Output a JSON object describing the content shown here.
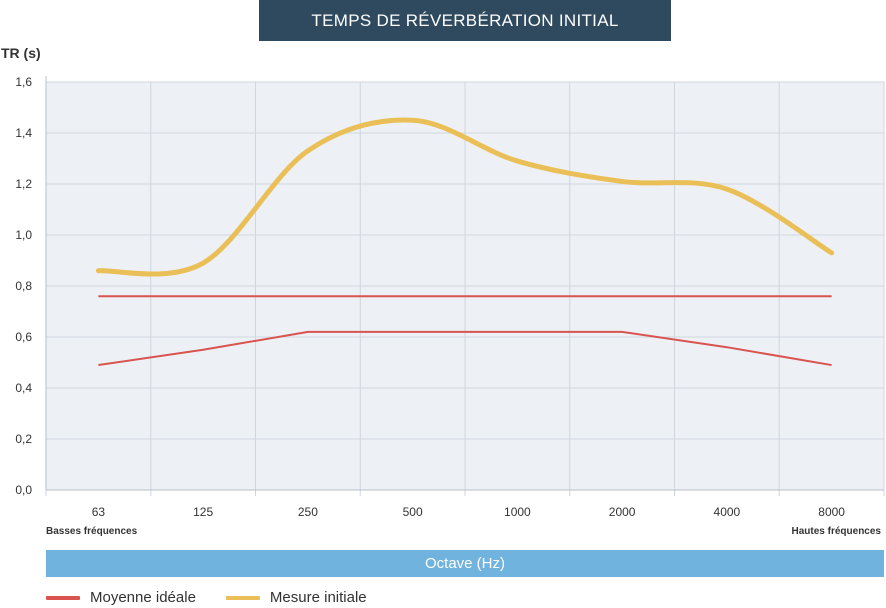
{
  "chart_data": {
    "type": "line",
    "title": "TEMPS DE RÉVERBÉRATION INITIAL",
    "ylabel": "TR (s)",
    "xlabel": "Octave (Hz)",
    "categories": [
      "63",
      "125",
      "250",
      "500",
      "1000",
      "2000",
      "4000",
      "8000"
    ],
    "x_end_labels": {
      "left": "Basses fréquences",
      "right": "Hautes fréquences"
    },
    "ylim": [
      0,
      1.6
    ],
    "yticks": [
      "0,0",
      "0,2",
      "0,4",
      "0,6",
      "0,8",
      "1,0",
      "1,2",
      "1,4",
      "1,6"
    ],
    "grid": true,
    "legend_position": "bottom-left",
    "series": [
      {
        "name": "Moyenne idéale",
        "role": "upper",
        "color": "#d9534f",
        "values": [
          0.76,
          0.76,
          0.76,
          0.76,
          0.76,
          0.76,
          0.76,
          0.76
        ]
      },
      {
        "name": "",
        "role": "lower",
        "color": "#d9534f",
        "values": [
          0.49,
          0.55,
          0.62,
          0.62,
          0.62,
          0.62,
          0.56,
          0.49
        ]
      },
      {
        "name": "Mesure initiale",
        "role": "measure",
        "color": "#eabf57",
        "values": [
          0.86,
          0.89,
          1.33,
          1.45,
          1.29,
          1.21,
          1.18,
          0.93
        ]
      }
    ]
  }
}
